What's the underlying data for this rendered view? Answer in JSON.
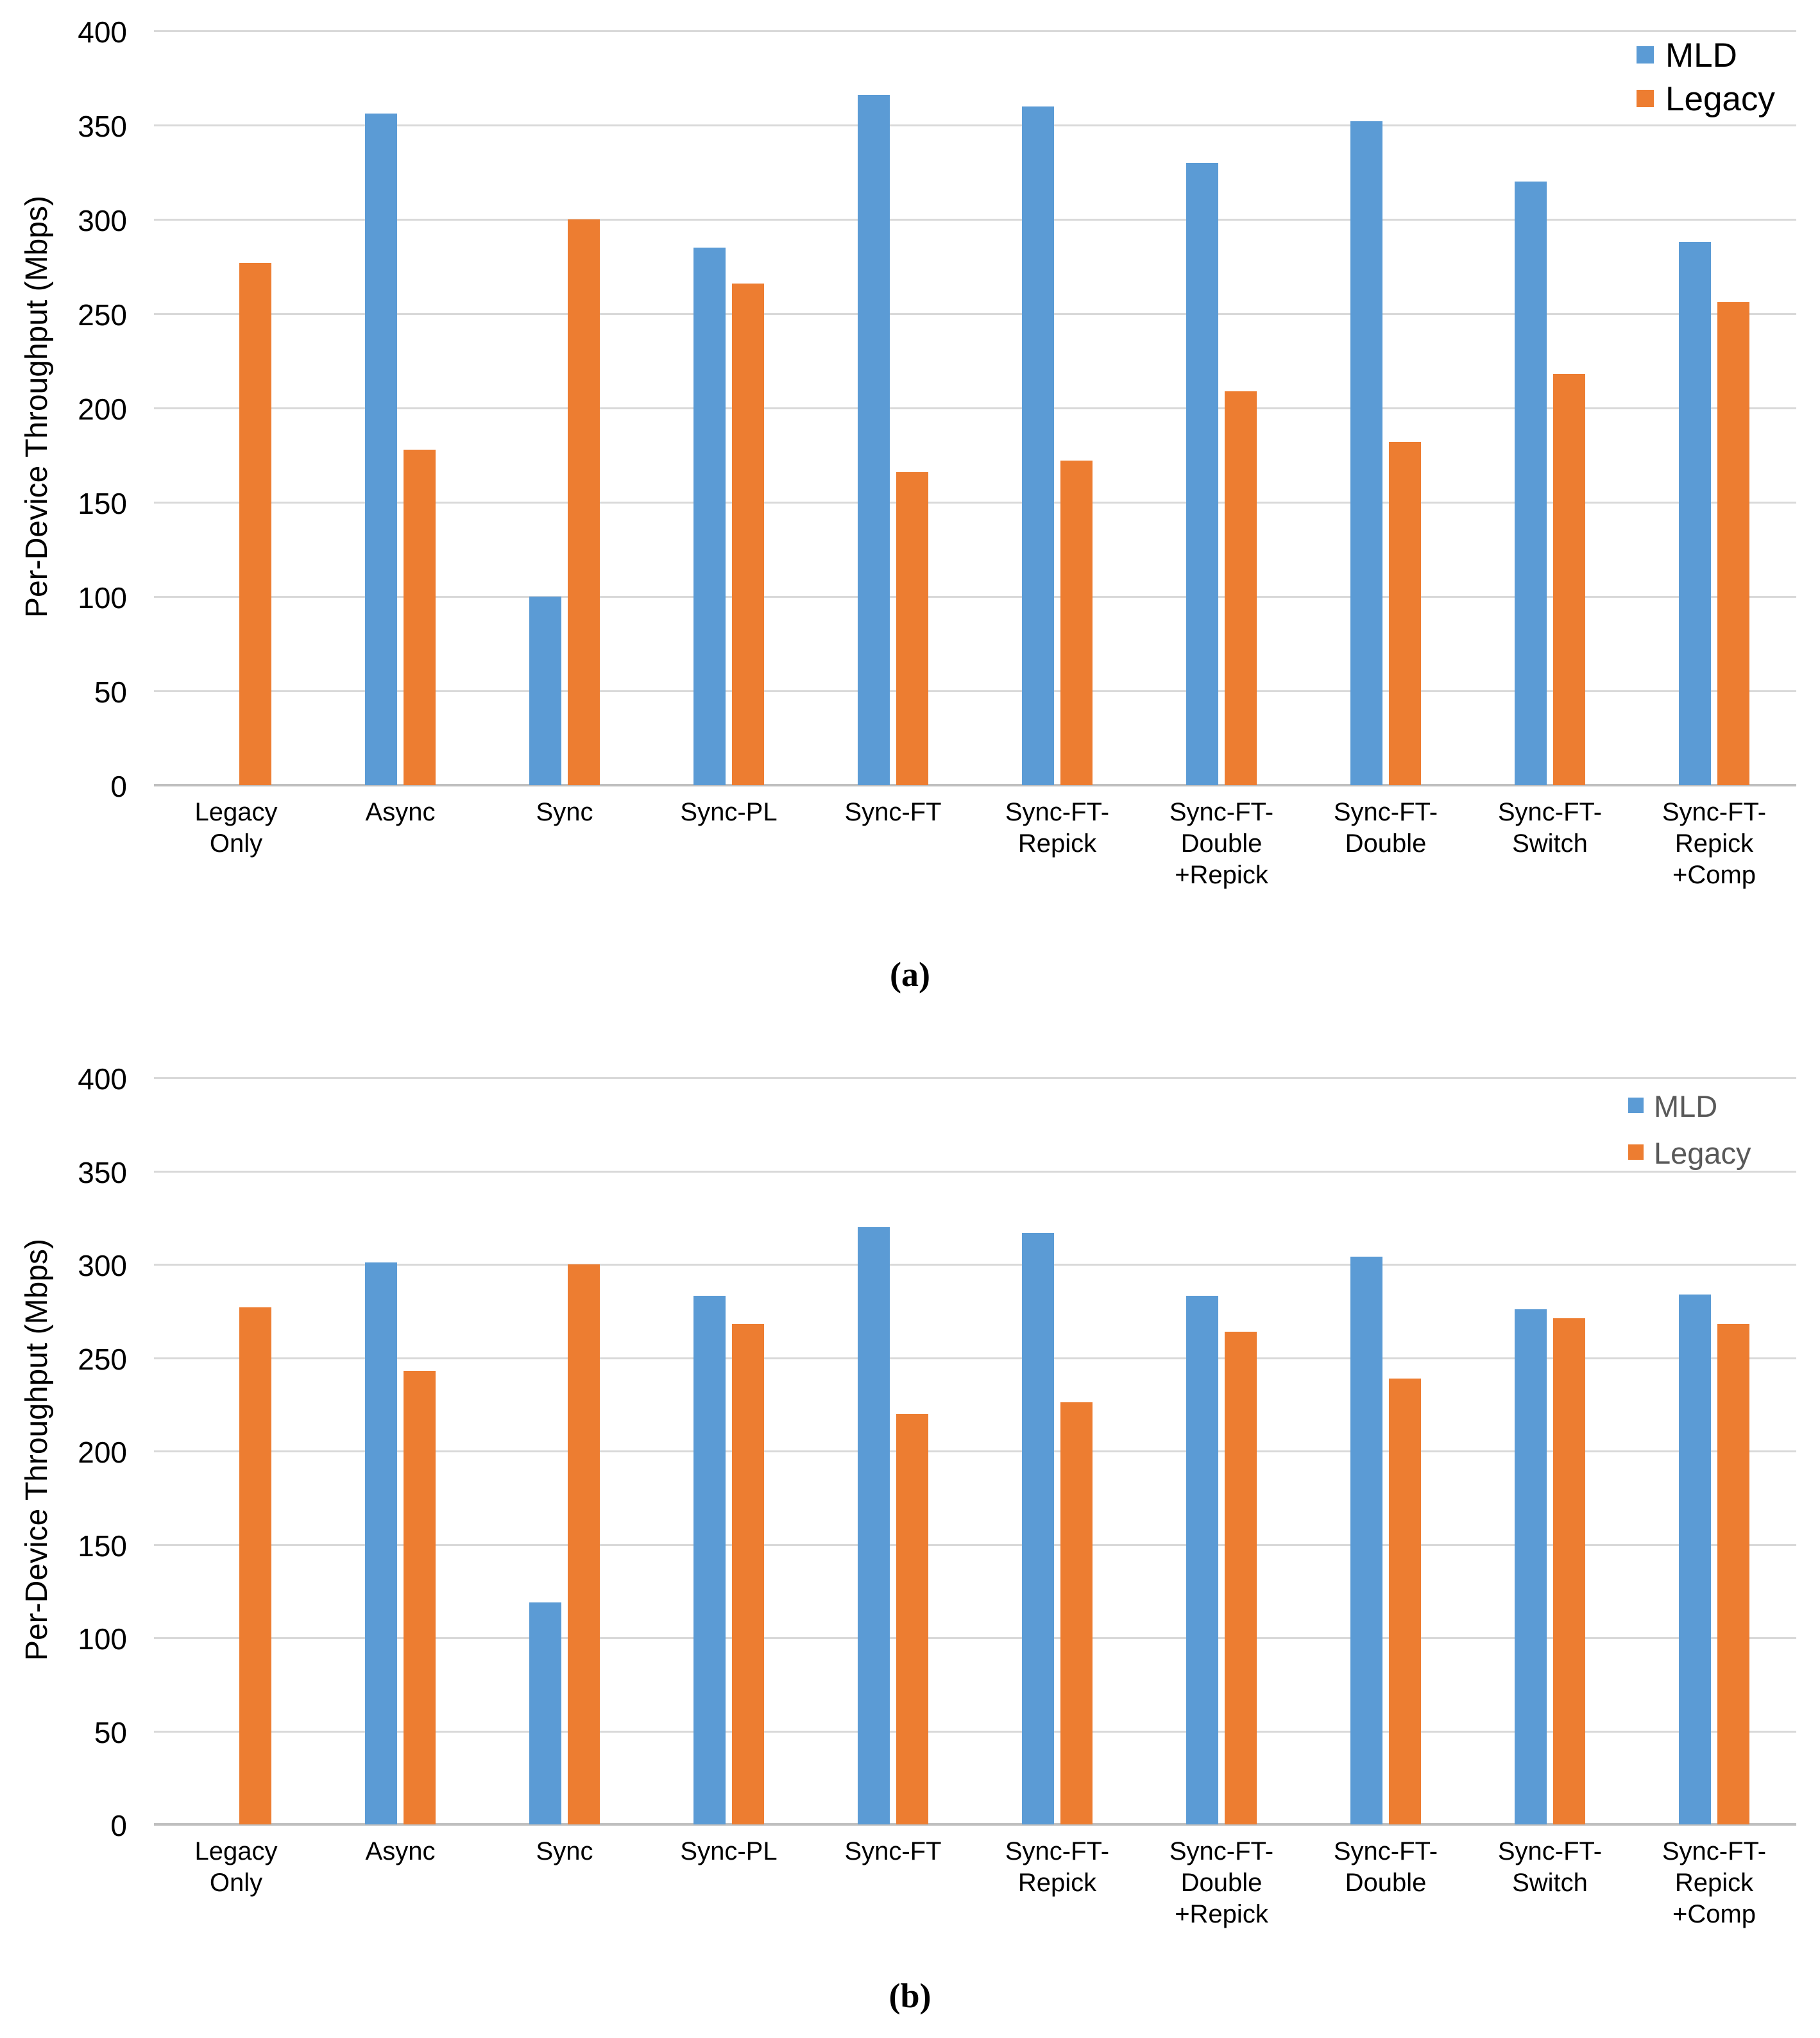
{
  "figure": {
    "background": "#ffffff",
    "captions": {
      "a": "(a)",
      "b": "(b)"
    }
  },
  "colors": {
    "mld": "#5b9bd5",
    "legacy": "#ed7d31",
    "gridline": "#d9d9d9",
    "axis_line": "#bfbfbf",
    "tick_text": "#000000",
    "legend_text_chart_a": "#000000",
    "legend_text_chart_b": "#595959"
  },
  "chart_data": [
    {
      "id": "a",
      "type": "bar",
      "title": "",
      "xlabel": "",
      "ylabel": "Per-Device Throughput (Mbps)",
      "ylim": [
        0,
        400
      ],
      "ytick_step": 50,
      "yticks": [
        "400",
        "350",
        "300",
        "250",
        "200",
        "150",
        "100",
        "50",
        "0"
      ],
      "grid": true,
      "legend_position": "top-right",
      "legend": [
        {
          "label": "MLD",
          "color": "#5b9bd5"
        },
        {
          "label": "Legacy",
          "color": "#ed7d31"
        }
      ],
      "categories": [
        "Legacy Only",
        "Async",
        "Sync",
        "Sync-PL",
        "Sync-FT",
        "Sync-FT-Repick",
        "Sync-FT-Double+Repick",
        "Sync-FT-Double",
        "Sync-FT-Switch",
        "Sync-FT-Repick+Comp"
      ],
      "category_display": [
        [
          "Legacy",
          "Only"
        ],
        [
          "Async"
        ],
        [
          "Sync"
        ],
        [
          "Sync-PL"
        ],
        [
          "Sync-FT"
        ],
        [
          "Sync-FT-",
          "Repick"
        ],
        [
          "Sync-FT-",
          "Double",
          "+Repick"
        ],
        [
          "Sync-FT-",
          "Double"
        ],
        [
          "Sync-FT-",
          "Switch"
        ],
        [
          "Sync-FT-",
          "Repick",
          "+Comp"
        ]
      ],
      "series": [
        {
          "name": "MLD",
          "color": "#5b9bd5",
          "values": [
            null,
            356,
            100,
            285,
            366,
            360,
            330,
            352,
            320,
            288
          ]
        },
        {
          "name": "Legacy",
          "color": "#ed7d31",
          "values": [
            277,
            178,
            300,
            266,
            166,
            172,
            209,
            182,
            218,
            256
          ]
        }
      ],
      "caption": "(a)"
    },
    {
      "id": "b",
      "type": "bar",
      "title": "",
      "xlabel": "",
      "ylabel": "Per-Device Throughput (Mbps)",
      "ylim": [
        0,
        400
      ],
      "ytick_step": 50,
      "yticks": [
        "400",
        "350",
        "300",
        "250",
        "200",
        "150",
        "100",
        "50",
        "0"
      ],
      "grid": true,
      "legend_position": "top-right",
      "legend": [
        {
          "label": "MLD",
          "color": "#5b9bd5"
        },
        {
          "label": "Legacy",
          "color": "#ed7d31"
        }
      ],
      "categories": [
        "Legacy Only",
        "Async",
        "Sync",
        "Sync-PL",
        "Sync-FT",
        "Sync-FT-Repick",
        "Sync-FT-Double+Repick",
        "Sync-FT-Double",
        "Sync-FT-Switch",
        "Sync-FT-Repick+Comp"
      ],
      "category_display": [
        [
          "Legacy",
          "Only"
        ],
        [
          "Async"
        ],
        [
          "Sync"
        ],
        [
          "Sync-PL"
        ],
        [
          "Sync-FT"
        ],
        [
          "Sync-FT-",
          "Repick"
        ],
        [
          "Sync-FT-",
          "Double",
          "+Repick"
        ],
        [
          "Sync-FT-",
          "Double"
        ],
        [
          "Sync-FT-",
          "Switch"
        ],
        [
          "Sync-FT-",
          "Repick",
          "+Comp"
        ]
      ],
      "series": [
        {
          "name": "MLD",
          "color": "#5b9bd5",
          "values": [
            null,
            301,
            119,
            283,
            320,
            317,
            283,
            304,
            276,
            284
          ]
        },
        {
          "name": "Legacy",
          "color": "#ed7d31",
          "values": [
            277,
            243,
            300,
            268,
            220,
            226,
            264,
            239,
            271,
            268
          ]
        }
      ],
      "caption": "(b)"
    }
  ]
}
